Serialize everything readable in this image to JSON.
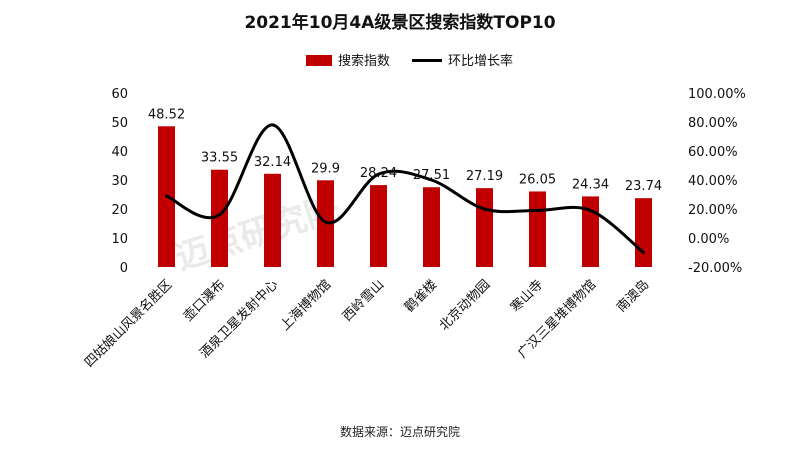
{
  "chart_data": {
    "type": "bar",
    "title": "2021年10月4A级景区搜索指数TOP10",
    "categories": [
      "四姑娘山风景名胜区",
      "壶口瀑布",
      "酒泉卫星发射中心",
      "上海博物馆",
      "西岭雪山",
      "鹳雀楼",
      "北京动物园",
      "寒山寺",
      "广汉三星堆博物馆",
      "南澳岛"
    ],
    "series": [
      {
        "name": "搜索指数",
        "type": "bar",
        "axis": "left",
        "color": "#c00000",
        "values": [
          48.52,
          33.55,
          32.14,
          29.9,
          28.24,
          27.51,
          27.19,
          26.05,
          24.34,
          23.74
        ],
        "labels": [
          "48.52",
          "33.55",
          "32.14",
          "29.9",
          "28.24",
          "27.51",
          "27.19",
          "26.05",
          "24.34",
          "23.74"
        ]
      },
      {
        "name": "环比增长率",
        "type": "line",
        "axis": "right",
        "color": "#000000",
        "values": [
          29,
          16,
          78,
          11,
          44,
          40,
          20,
          19,
          19,
          -10
        ]
      }
    ],
    "y_left": {
      "ylim": [
        0,
        60
      ],
      "ticks": [
        "0",
        "10",
        "20",
        "30",
        "40",
        "50",
        "60"
      ]
    },
    "y_right": {
      "ylim": [
        -20,
        100
      ],
      "ticks": [
        "-20.00%",
        "0.00%",
        "20.00%",
        "40.00%",
        "60.00%",
        "80.00%",
        "100.00%"
      ]
    },
    "legend": {
      "placement": "top-center"
    },
    "grid": false
  },
  "watermark": {
    "text": "迈点研究院",
    "color": "#d9d9d9"
  },
  "footer": {
    "source": "数据来源：迈点研究院"
  }
}
